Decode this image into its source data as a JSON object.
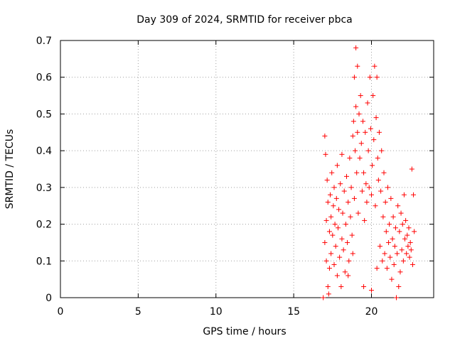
{
  "chart_data": {
    "type": "scatter",
    "title": "Day 309 of 2024, SRMTID for receiver pbca",
    "xlabel": "GPS time / hours",
    "ylabel": "SRMTID / TECUs",
    "xlim": [
      0,
      24
    ],
    "ylim": [
      0,
      0.7
    ],
    "grid": true,
    "xticks": [
      0,
      5,
      10,
      15,
      20
    ],
    "xtick_labels": [
      "0",
      "5",
      "10",
      "15",
      "20"
    ],
    "yticks": [
      0,
      0.1,
      0.2,
      0.3,
      0.4,
      0.5,
      0.6,
      0.7
    ],
    "ytick_labels": [
      "0",
      "0.1",
      "0.2",
      "0.3",
      "0.4",
      "0.5",
      "0.6",
      "0.7"
    ],
    "marker": "+",
    "color": "#ff0000",
    "series": [
      {
        "name": "pbca",
        "points": [
          [
            16.9,
            0.0
          ],
          [
            17.0,
            0.15
          ],
          [
            17.0,
            0.44
          ],
          [
            17.05,
            0.39
          ],
          [
            17.1,
            0.1
          ],
          [
            17.1,
            0.21
          ],
          [
            17.15,
            0.32
          ],
          [
            17.2,
            0.03
          ],
          [
            17.2,
            0.26
          ],
          [
            17.25,
            0.01
          ],
          [
            17.3,
            0.08
          ],
          [
            17.3,
            0.18
          ],
          [
            17.35,
            0.28
          ],
          [
            17.4,
            0.12
          ],
          [
            17.4,
            0.22
          ],
          [
            17.45,
            0.34
          ],
          [
            17.5,
            0.17
          ],
          [
            17.55,
            0.25
          ],
          [
            17.6,
            0.09
          ],
          [
            17.6,
            0.3
          ],
          [
            17.65,
            0.2
          ],
          [
            17.7,
            0.14
          ],
          [
            17.75,
            0.27
          ],
          [
            17.8,
            0.06
          ],
          [
            17.8,
            0.36
          ],
          [
            17.85,
            0.19
          ],
          [
            17.9,
            0.24
          ],
          [
            17.95,
            0.11
          ],
          [
            18.0,
            0.31
          ],
          [
            18.05,
            0.03
          ],
          [
            18.1,
            0.16
          ],
          [
            18.1,
            0.39
          ],
          [
            18.15,
            0.23
          ],
          [
            18.2,
            0.13
          ],
          [
            18.25,
            0.29
          ],
          [
            18.3,
            0.07
          ],
          [
            18.35,
            0.2
          ],
          [
            18.4,
            0.33
          ],
          [
            18.45,
            0.15
          ],
          [
            18.5,
            0.26
          ],
          [
            18.5,
            0.06
          ],
          [
            18.55,
            0.1
          ],
          [
            18.6,
            0.38
          ],
          [
            18.65,
            0.22
          ],
          [
            18.7,
            0.3
          ],
          [
            18.75,
            0.17
          ],
          [
            18.8,
            0.44
          ],
          [
            18.8,
            0.12
          ],
          [
            18.85,
            0.48
          ],
          [
            18.9,
            0.27
          ],
          [
            18.9,
            0.6
          ],
          [
            18.95,
            0.4
          ],
          [
            19.0,
            0.68
          ],
          [
            19.0,
            0.52
          ],
          [
            19.05,
            0.34
          ],
          [
            19.1,
            0.45
          ],
          [
            19.1,
            0.63
          ],
          [
            19.15,
            0.23
          ],
          [
            19.2,
            0.5
          ],
          [
            19.25,
            0.38
          ],
          [
            19.3,
            0.55
          ],
          [
            19.35,
            0.42
          ],
          [
            19.4,
            0.29
          ],
          [
            19.45,
            0.48
          ],
          [
            19.5,
            0.34
          ],
          [
            19.5,
            0.03
          ],
          [
            19.55,
            0.21
          ],
          [
            19.6,
            0.45
          ],
          [
            19.65,
            0.31
          ],
          [
            19.7,
            0.26
          ],
          [
            19.75,
            0.53
          ],
          [
            19.8,
            0.4
          ],
          [
            19.85,
            0.3
          ],
          [
            19.9,
            0.6
          ],
          [
            19.95,
            0.46
          ],
          [
            20.0,
            0.02
          ],
          [
            20.0,
            0.28
          ],
          [
            20.05,
            0.36
          ],
          [
            20.1,
            0.55
          ],
          [
            20.15,
            0.43
          ],
          [
            20.2,
            0.63
          ],
          [
            20.25,
            0.25
          ],
          [
            20.3,
            0.49
          ],
          [
            20.35,
            0.08
          ],
          [
            20.35,
            0.6
          ],
          [
            20.4,
            0.38
          ],
          [
            20.45,
            0.32
          ],
          [
            20.5,
            0.45
          ],
          [
            20.55,
            0.14
          ],
          [
            20.6,
            0.29
          ],
          [
            20.65,
            0.4
          ],
          [
            20.7,
            0.1
          ],
          [
            20.75,
            0.22
          ],
          [
            20.8,
            0.34
          ],
          [
            20.85,
            0.12
          ],
          [
            20.9,
            0.26
          ],
          [
            20.95,
            0.18
          ],
          [
            21.0,
            0.08
          ],
          [
            21.05,
            0.3
          ],
          [
            21.1,
            0.15
          ],
          [
            21.15,
            0.2
          ],
          [
            21.2,
            0.11
          ],
          [
            21.25,
            0.27
          ],
          [
            21.3,
            0.05
          ],
          [
            21.35,
            0.16
          ],
          [
            21.4,
            0.22
          ],
          [
            21.45,
            0.09
          ],
          [
            21.5,
            0.14
          ],
          [
            21.55,
            0.19
          ],
          [
            21.6,
            0.0
          ],
          [
            21.65,
            0.12
          ],
          [
            21.7,
            0.25
          ],
          [
            21.75,
            0.03
          ],
          [
            21.8,
            0.18
          ],
          [
            21.85,
            0.07
          ],
          [
            21.9,
            0.23
          ],
          [
            21.95,
            0.13
          ],
          [
            22.0,
            0.2
          ],
          [
            22.05,
            0.1
          ],
          [
            22.1,
            0.28
          ],
          [
            22.15,
            0.16
          ],
          [
            22.2,
            0.21
          ],
          [
            22.25,
            0.12
          ],
          [
            22.3,
            0.17
          ],
          [
            22.35,
            0.14
          ],
          [
            22.4,
            0.19
          ],
          [
            22.45,
            0.11
          ],
          [
            22.5,
            0.15
          ],
          [
            22.55,
            0.13
          ],
          [
            22.6,
            0.35
          ],
          [
            22.65,
            0.09
          ],
          [
            22.7,
            0.28
          ],
          [
            22.75,
            0.18
          ]
        ]
      }
    ]
  }
}
